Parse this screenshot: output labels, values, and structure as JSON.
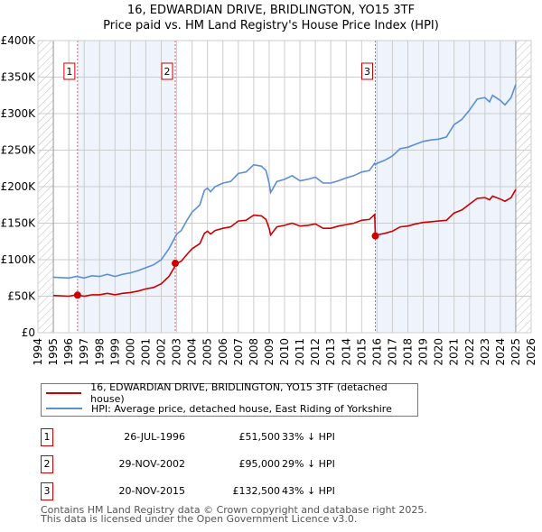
{
  "chart_data": {
    "type": "line",
    "title": "16, EDWARDIAN DRIVE, BRIDLINGTON, YO15 3TF",
    "subtitle": "Price paid vs. HM Land Registry's House Price Index (HPI)",
    "xlim": [
      1994,
      2026
    ],
    "ylim": [
      0,
      400000
    ],
    "x_ticks": [
      "1994",
      "1995",
      "1996",
      "1997",
      "1998",
      "1999",
      "2000",
      "2001",
      "2002",
      "2003",
      "2004",
      "2005",
      "2006",
      "2007",
      "2008",
      "2009",
      "2010",
      "2011",
      "2012",
      "2013",
      "2014",
      "2015",
      "2016",
      "2017",
      "2018",
      "2019",
      "2020",
      "2021",
      "2022",
      "2023",
      "2024",
      "2025",
      "2026"
    ],
    "y_ticks": [
      "£0",
      "£50K",
      "£100K",
      "£150K",
      "£200K",
      "£250K",
      "£300K",
      "£350K",
      "£400K"
    ],
    "grid": true,
    "x": [
      1995,
      1996,
      1996.5,
      1997,
      1997.5,
      1998,
      1998.5,
      1999,
      1999.5,
      2000,
      2000.5,
      2001,
      2001.5,
      2002,
      2002.5,
      2003,
      2003.3,
      2003.7,
      2004,
      2004.5,
      2004.8,
      2005,
      2005.2,
      2005.5,
      2006,
      2006.5,
      2007,
      2007.5,
      2008,
      2008.5,
      2008.8,
      2009,
      2009.1,
      2009.5,
      2010,
      2010.5,
      2011,
      2011.5,
      2012,
      2012.5,
      2013,
      2013.5,
      2014,
      2014.5,
      2015,
      2015.5,
      2015.85,
      2015.89,
      2016,
      2016.5,
      2017,
      2017.5,
      2018,
      2018.5,
      2019,
      2019.5,
      2020,
      2020.5,
      2021,
      2021.5,
      2022,
      2022.5,
      2023,
      2023.3,
      2023.5,
      2024,
      2024.3,
      2024.7,
      2025
    ],
    "series": [
      {
        "name": "16, EDWARDIAN DRIVE, BRIDLINGTON, YO15 3TF (detached house)",
        "color": "#cc0000",
        "values": [
          51,
          50,
          52,
          50,
          52,
          52,
          54,
          52,
          54,
          55,
          57,
          60,
          62,
          67,
          77,
          95,
          98,
          108,
          115,
          122,
          136,
          139,
          135,
          140,
          143,
          145,
          153,
          154,
          161,
          160,
          155,
          143,
          134,
          145,
          147,
          150,
          146,
          147,
          149,
          143,
          143,
          146,
          148,
          150,
          154,
          155,
          162,
          132.5,
          134,
          136,
          139,
          145,
          146,
          149,
          151,
          152,
          153,
          154,
          164,
          168,
          176,
          184,
          185,
          182,
          187,
          183,
          180,
          185,
          196
        ]
      },
      {
        "name": "HPI: Average price, detached house, East Riding of Yorkshire",
        "color": "#5b8fd4",
        "values": [
          76,
          75,
          77,
          75,
          78,
          77,
          80,
          77,
          80,
          82,
          85,
          89,
          93,
          100,
          115,
          135,
          140,
          155,
          165,
          175,
          195,
          198,
          193,
          200,
          205,
          207,
          218,
          220,
          230,
          228,
          222,
          205,
          192,
          207,
          210,
          215,
          208,
          210,
          213,
          205,
          205,
          208,
          212,
          215,
          220,
          222,
          232,
          230,
          232,
          236,
          242,
          252,
          254,
          258,
          262,
          264,
          265,
          268,
          285,
          292,
          305,
          320,
          322,
          316,
          325,
          318,
          312,
          322,
          340
        ]
      }
    ],
    "value_unit": "thousand GBP",
    "sales": [
      {
        "label": "1",
        "year": 1996.57,
        "value": 51.5,
        "date": "26-JUL-1996",
        "price": "£51,500",
        "hpi": "33% ↓ HPI"
      },
      {
        "label": "2",
        "year": 2002.91,
        "value": 95,
        "date": "29-NOV-2002",
        "price": "£95,000",
        "hpi": "29% ↓ HPI"
      },
      {
        "label": "3",
        "year": 2015.89,
        "value": 132.5,
        "date": "20-NOV-2015",
        "price": "£132,500",
        "hpi": "43% ↓ HPI"
      }
    ],
    "shaded_ranges": [
      [
        1996.57,
        2002.91
      ],
      [
        2015.89,
        2025
      ]
    ],
    "hatched_ranges": [
      [
        1994,
        1995
      ],
      [
        2025,
        2026
      ]
    ],
    "legend_placement": "bottom"
  },
  "footer": [
    "Contains HM Land Registry data © Crown copyright and database right 2025.",
    "This data is licensed under the Open Government Licence v3.0."
  ]
}
